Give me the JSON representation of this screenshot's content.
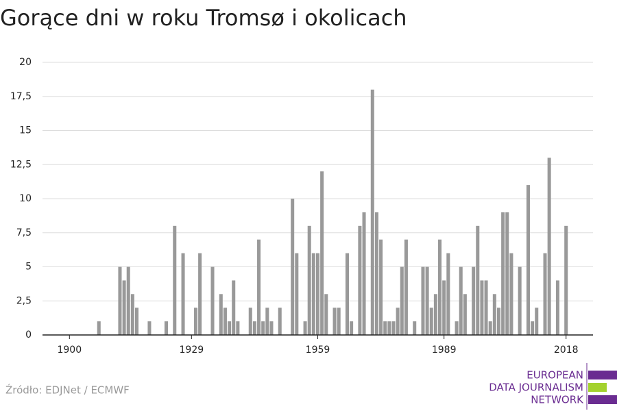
{
  "chart_data": {
    "type": "bar",
    "title": "Gorące dni w roku Tromsø i okolicach",
    "source": "Źródło: EDJNet / ECMWF",
    "logo": [
      "EUROPEAN",
      "DATA JOURNALISM",
      "NETWORK"
    ],
    "color": "#999999",
    "x": [
      1907,
      1912,
      1913,
      1914,
      1915,
      1916,
      1919,
      1923,
      1925,
      1927,
      1930,
      1931,
      1934,
      1936,
      1937,
      1938,
      1939,
      1940,
      1943,
      1944,
      1945,
      1946,
      1947,
      1948,
      1950,
      1953,
      1954,
      1956,
      1957,
      1958,
      1959,
      1960,
      1961,
      1963,
      1964,
      1966,
      1967,
      1969,
      1970,
      1972,
      1973,
      1974,
      1975,
      1976,
      1977,
      1978,
      1979,
      1980,
      1982,
      1984,
      1985,
      1986,
      1987,
      1988,
      1989,
      1990,
      1992,
      1993,
      1994,
      1996,
      1997,
      1998,
      1999,
      2000,
      2001,
      2002,
      2003,
      2004,
      2005,
      2007,
      2009,
      2010,
      2011,
      2013,
      2014,
      2016,
      2018
    ],
    "values": [
      1,
      5,
      4,
      5,
      3,
      2,
      1,
      1,
      8,
      6,
      2,
      6,
      5,
      3,
      2,
      1,
      4,
      1,
      2,
      1,
      7,
      1,
      2,
      1,
      2,
      10,
      6,
      1,
      8,
      6,
      6,
      12,
      3,
      2,
      2,
      6,
      1,
      8,
      9,
      18,
      9,
      7,
      1,
      1,
      1,
      2,
      5,
      7,
      1,
      5,
      5,
      2,
      3,
      7,
      4,
      6,
      1,
      5,
      3,
      5,
      8,
      4,
      4,
      1,
      3,
      2,
      9,
      9,
      6,
      5,
      11,
      1,
      2,
      6,
      13,
      4,
      8
    ],
    "xlim": [
      1893.6,
      2024.4
    ],
    "xticks": [
      1900,
      1929,
      1959,
      1989,
      2018
    ],
    "ylim": [
      0,
      20
    ],
    "yticks": [
      0,
      {
        "value": 2.5,
        "label": "2,5"
      },
      5,
      {
        "value": 7.5,
        "label": "7,5"
      },
      10,
      {
        "value": 12.5,
        "label": "12,5"
      },
      15,
      {
        "value": 17.5,
        "label": "17,5"
      },
      20
    ],
    "grid": true
  }
}
